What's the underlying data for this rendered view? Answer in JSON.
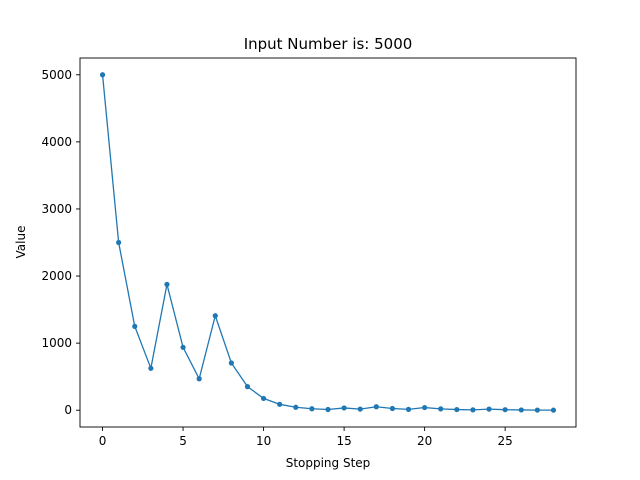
{
  "chart_data": {
    "type": "line",
    "title": "Input Number is: 5000",
    "xlabel": "Stopping Step",
    "ylabel": "Value",
    "xlim": [
      -1.4,
      29.4
    ],
    "ylim": [
      -250,
      5250
    ],
    "xticks": [
      0,
      5,
      10,
      15,
      20,
      25
    ],
    "yticks": [
      0,
      1000,
      2000,
      3000,
      4000,
      5000
    ],
    "grid": false,
    "marker": "dot",
    "colors": {
      "series": "#1f77b4"
    },
    "series": [
      {
        "x": [
          0,
          1,
          2,
          3,
          4,
          5,
          6,
          7,
          8,
          9,
          10,
          11,
          12,
          13,
          14,
          15,
          16,
          17,
          18,
          19,
          20,
          21,
          22,
          23,
          24,
          25,
          26,
          27,
          28
        ],
        "values": [
          5000,
          2500,
          1250,
          625,
          1876,
          938,
          469,
          1408,
          704,
          352,
          176,
          88,
          44,
          22,
          11,
          34,
          17,
          52,
          26,
          13,
          40,
          20,
          10,
          5,
          16,
          8,
          4,
          2,
          1
        ]
      }
    ]
  }
}
